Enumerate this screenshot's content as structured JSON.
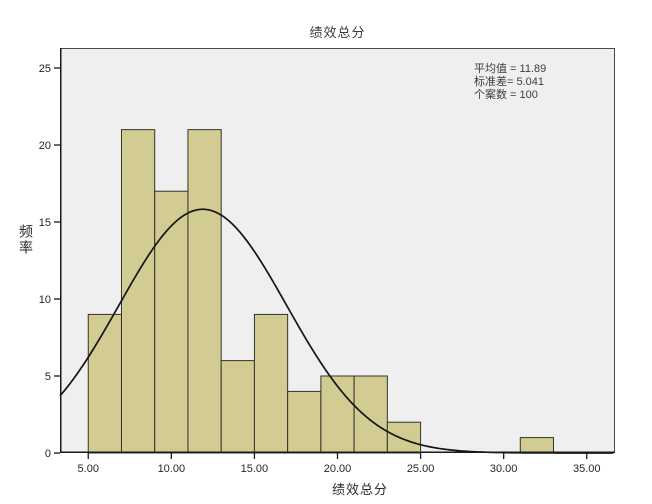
{
  "title": "绩效总分",
  "axes": {
    "x_label": "绩效总分",
    "y_label": "频率"
  },
  "stats_box": {
    "lines": [
      "平均值 = 11.89",
      "标准差= 5.041",
      "个案数 = 100"
    ]
  },
  "chart_data": {
    "type": "bar",
    "variant": "histogram_with_normal_curve",
    "title": "绩效总分",
    "xlabel": "绩效总分",
    "ylabel": "频率",
    "bin_width": 2,
    "bin_edges": [
      5,
      7,
      9,
      11,
      13,
      15,
      17,
      19,
      21,
      23,
      25,
      27,
      29,
      31,
      33
    ],
    "counts": [
      9,
      21,
      17,
      21,
      6,
      9,
      4,
      5,
      5,
      2,
      0,
      0,
      0,
      1
    ],
    "total_cases": 100,
    "normal_curve": {
      "mean": 11.89,
      "sd": 5.041,
      "n": 100
    },
    "xlim": [
      3.3,
      36.7
    ],
    "ylim": [
      0,
      26.3
    ],
    "x_ticks": {
      "values": [
        5,
        10,
        15,
        20,
        25,
        30,
        35
      ],
      "labels": [
        "5.00",
        "10.00",
        "15.00",
        "20.00",
        "25.00",
        "30.00",
        "35.00"
      ]
    },
    "y_ticks": {
      "values": [
        0,
        5,
        10,
        15,
        20,
        25
      ],
      "labels": [
        "0",
        "5",
        "10",
        "15",
        "20",
        "25"
      ]
    },
    "grid": false,
    "legend": "none",
    "colors": {
      "bar_fill": "#d2cc92",
      "bar_stroke": "#33332a",
      "curve": "#151515",
      "panel_bg": "#efefef",
      "frame": "#4a4a4a",
      "axis_line": "#1a1a1a",
      "tick": "#1a1a1a"
    }
  }
}
